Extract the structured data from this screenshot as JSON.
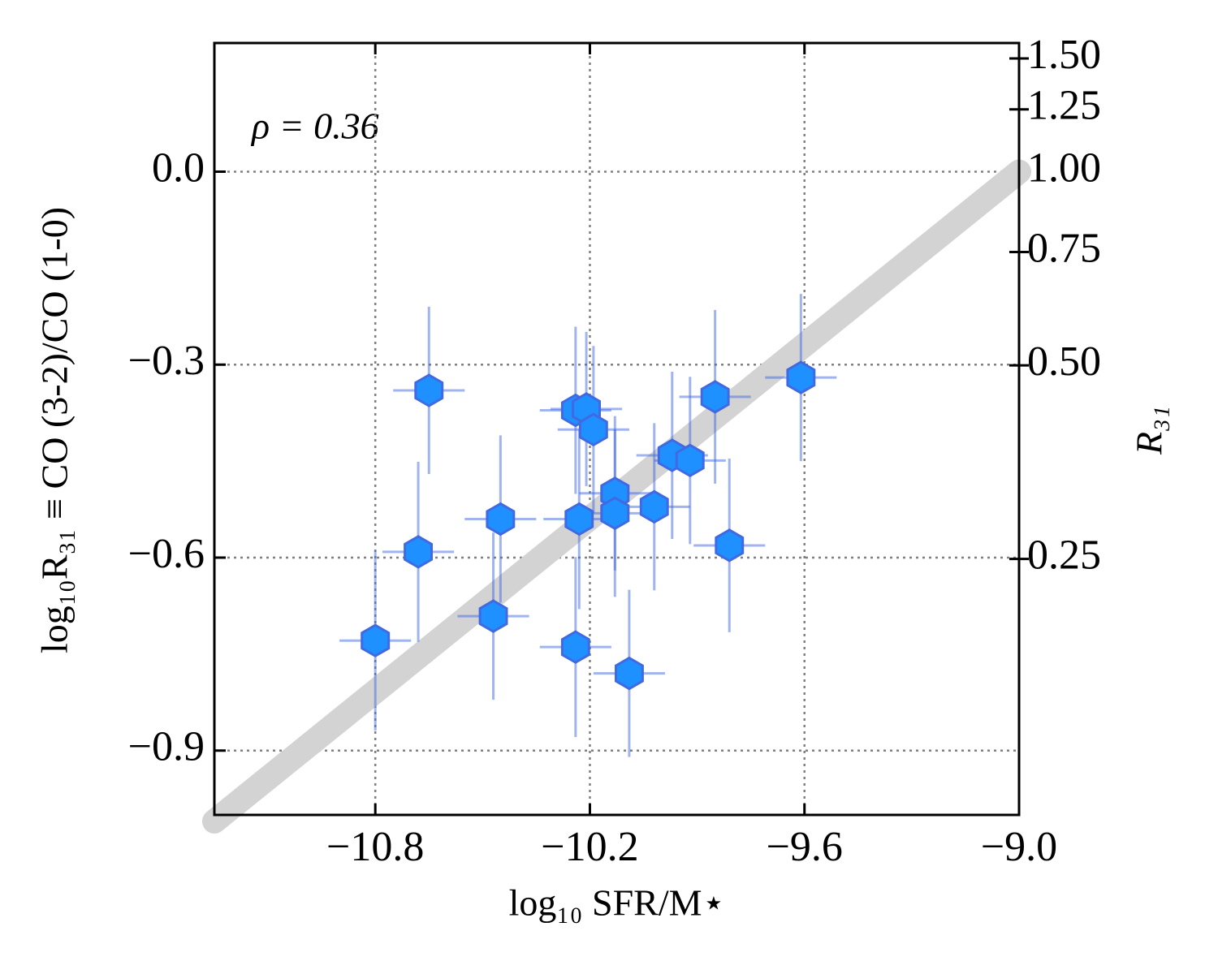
{
  "chart_data": {
    "type": "scatter",
    "annotation": "ρ = 0.36",
    "x_label": "log₁₀ SFR/M⋆",
    "y_label": "log₁₀R₃₁ ≡ CO (3-2)/CO (1-0)",
    "y2_label": "R₃₁",
    "xlim": [
      -11.25,
      -9.0
    ],
    "ylim": [
      -1.0,
      0.2
    ],
    "y2lim": [
      0.1,
      1.585
    ],
    "y2_log": true,
    "grid": true,
    "xticks": [
      {
        "value": -10.8,
        "label": "−10.8"
      },
      {
        "value": -10.2,
        "label": "−10.2"
      },
      {
        "value": -9.6,
        "label": "−9.6"
      },
      {
        "value": -9.0,
        "label": "−9.0"
      }
    ],
    "yticks": [
      {
        "value": 0.0,
        "label": "0.0"
      },
      {
        "value": -0.3,
        "label": "−0.3"
      },
      {
        "value": -0.6,
        "label": "−0.6"
      },
      {
        "value": -0.9,
        "label": "−0.9"
      }
    ],
    "y2ticks": [
      {
        "value": 1.5,
        "label": "1.50"
      },
      {
        "value": 1.25,
        "label": "1.25"
      },
      {
        "value": 1.0,
        "label": "1.00"
      },
      {
        "value": 0.75,
        "label": "0.75"
      },
      {
        "value": 0.5,
        "label": "0.50"
      },
      {
        "value": 0.25,
        "label": "0.25"
      }
    ],
    "line": {
      "x": [
        -11.25,
        -9.0
      ],
      "y": [
        -1.01,
        0.0
      ],
      "color": "#d3d3d3"
    },
    "series": [
      {
        "color": "#1e90ff",
        "edge_color": "#4169e1",
        "x": [
          -10.8,
          -10.65,
          -10.68,
          -10.45,
          -10.47,
          -10.24,
          -10.21,
          -10.19,
          -10.23,
          -10.24,
          -10.13,
          -10.13,
          -10.09,
          -10.02,
          -9.97,
          -9.92,
          -9.85,
          -9.81,
          -9.61
        ],
        "values": [
          -0.729,
          -0.34,
          -0.591,
          -0.54,
          -0.691,
          -0.371,
          -0.369,
          -0.401,
          -0.54,
          -0.739,
          -0.5,
          -0.531,
          -0.78,
          -0.521,
          -0.441,
          -0.449,
          -0.35,
          -0.581,
          -0.32
        ],
        "xerr": [
          0.1,
          0.1,
          0.1,
          0.1,
          0.1,
          0.1,
          0.1,
          0.1,
          0.1,
          0.1,
          0.1,
          0.1,
          0.1,
          0.1,
          0.1,
          0.1,
          0.1,
          0.1,
          0.1
        ],
        "yerr": [
          0.14,
          0.13,
          0.14,
          0.13,
          0.13,
          0.13,
          0.12,
          0.13,
          0.14,
          0.14,
          0.12,
          0.13,
          0.13,
          0.13,
          0.13,
          0.13,
          0.135,
          0.135,
          0.13
        ]
      }
    ]
  }
}
